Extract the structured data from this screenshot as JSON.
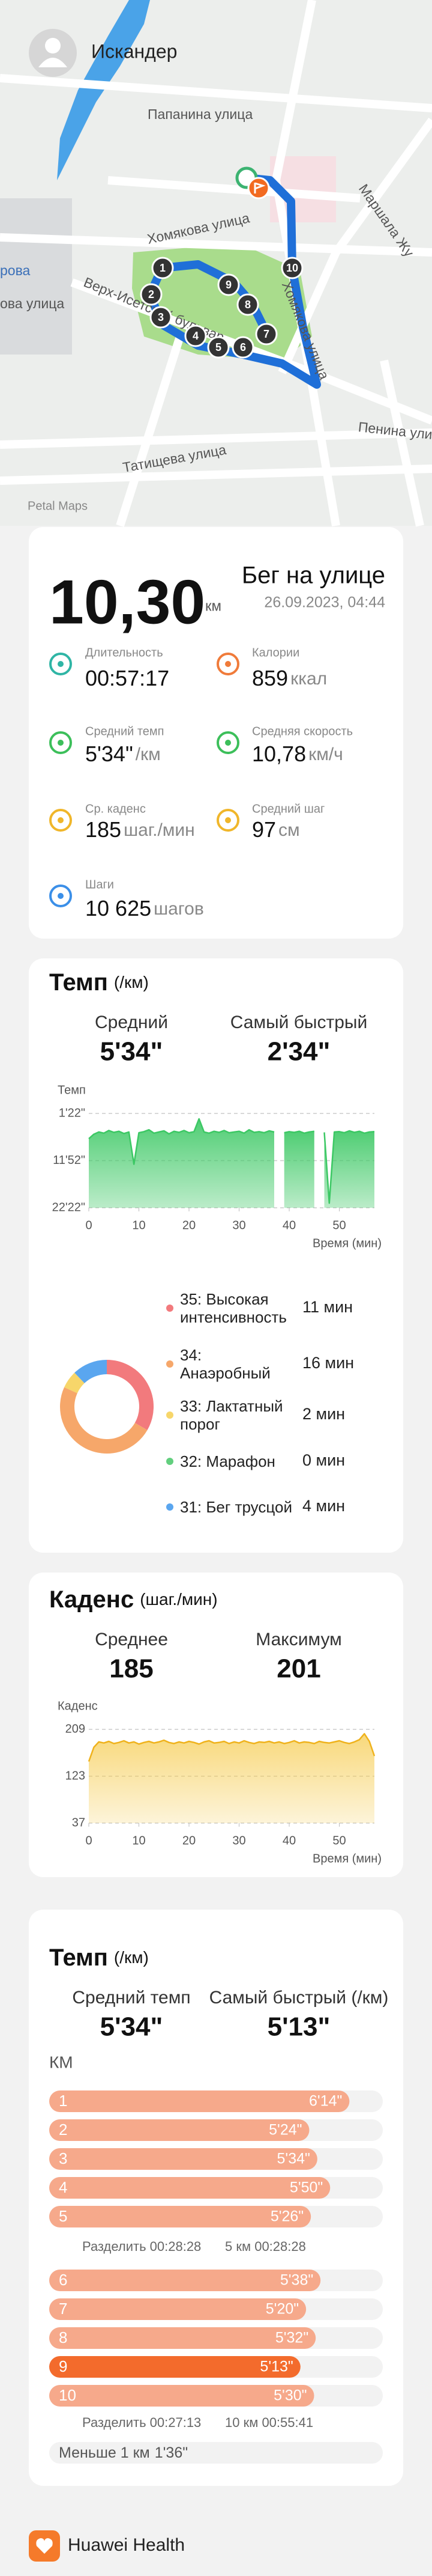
{
  "header": {
    "user": "Искандер"
  },
  "map": {
    "labels": [
      "Папанина улица",
      "Хомякова улица",
      "Маршала Жу",
      "рова",
      "ова улица",
      "Верх-Исетский бульвар",
      "Хомякова улица",
      "Пенина улица",
      "Татищева улица"
    ],
    "markers": [
      "1",
      "2",
      "3",
      "4",
      "5",
      "6",
      "7",
      "8",
      "9",
      "10"
    ],
    "attribution": "Petal Maps"
  },
  "summary": {
    "distance": "10,30",
    "distance_unit": "км",
    "activity": "Бег на улице",
    "datetime": "26.09.2023, 04:44",
    "stats": [
      {
        "label": "Длительность",
        "value": "00:57:17"
      },
      {
        "label": "Калории",
        "value": "859",
        "unit": "ккал"
      },
      {
        "label": "Средний темп",
        "value": "5'34\"",
        "unit": "/км"
      },
      {
        "label": "Средняя скорость",
        "value": "10,78",
        "unit": "км/ч"
      },
      {
        "label": "Ср. каденс",
        "value": "185",
        "unit": "шаг./мин"
      },
      {
        "label": "Средний шаг",
        "value": "97",
        "unit": "см"
      },
      {
        "label": "Шаги",
        "value": "10 625",
        "unit": "шагов"
      }
    ]
  },
  "pace_card": {
    "title": "Темп",
    "unit": "(/км)",
    "avg_label": "Средний",
    "avg": "5'34\"",
    "best_label": "Самый быстрый",
    "best": "2'34\""
  },
  "cadence_card": {
    "title": "Каденс",
    "unit": "(шаг./мин)",
    "avg_label": "Среднее",
    "avg": "185",
    "max_label": "Максимум",
    "max": "201"
  },
  "splits_card": {
    "title": "Темп",
    "unit": "(/км)",
    "avg_label": "Средний темп",
    "avg": "5'34\"",
    "best_label": "Самый быстрый (/км)",
    "best": "5'13\"",
    "column": "КМ",
    "splits": [
      {
        "split": "Разделить 00:28:28",
        "cumulative": "5 км 00:28:28"
      },
      {
        "split": "Разделить 00:27:13",
        "cumulative": "10 км 00:55:41"
      }
    ],
    "remainder_label": "Меньше 1 км",
    "remainder": "1'36\""
  },
  "footer": {
    "app": "Huawei Health"
  },
  "chart_data": [
    {
      "type": "line",
      "ylabel": "Темп",
      "xlabel": "Время (мин)",
      "x": [
        0,
        1,
        2,
        3,
        4,
        5,
        6,
        7,
        8,
        9,
        10,
        11,
        12,
        13,
        14,
        15,
        16,
        17,
        18,
        19,
        20,
        21,
        22,
        23,
        24,
        25,
        26,
        27,
        28,
        29,
        30,
        31,
        32,
        33,
        34,
        35,
        36,
        37,
        38,
        39,
        40,
        41,
        42,
        43,
        44,
        45,
        46,
        47,
        48,
        49,
        50,
        51,
        52,
        53,
        54,
        55,
        56,
        57
      ],
      "series": [
        {
          "color": "#3cc864",
          "values": [
            420,
            360,
            330,
            345,
            310,
            335,
            320,
            350,
            330,
            760,
            340,
            325,
            300,
            345,
            330,
            315,
            355,
            320,
            335,
            310,
            340,
            325,
            154,
            330,
            345,
            320,
            335,
            310,
            340,
            330,
            320,
            345,
            300,
            335,
            325,
            340,
            315,
            330,
            null,
            340,
            325,
            335,
            320,
            345,
            330,
            320,
            null,
            335,
            1280,
            330,
            325,
            340,
            315,
            335,
            320,
            345,
            330,
            325
          ]
        }
      ],
      "xlim": [
        0,
        57
      ],
      "xticks": [
        0,
        10,
        20,
        30,
        40,
        50
      ],
      "ylim": [
        1342,
        82
      ],
      "yticks": [
        {
          "value": 82,
          "label": "1'22\""
        },
        {
          "value": 712,
          "label": "11'52\""
        },
        {
          "value": 1342,
          "label": "22'22\""
        }
      ],
      "grid": true
    },
    {
      "type": "pie",
      "donut": true,
      "categories": [
        "35: Высокая интенсивность",
        "34: Анаэробный",
        "33: Лактатный порог",
        "32: Марафон",
        "31: Бег трусцой"
      ],
      "values": [
        11,
        16,
        2,
        0,
        4
      ],
      "value_labels": [
        "11 мин",
        "16 мин",
        "2 мин",
        "0 мин",
        "4 мин"
      ],
      "colors": [
        "#f27a7d",
        "#f6a76a",
        "#f7d66a",
        "#62cf7e",
        "#5aa6ef"
      ]
    },
    {
      "type": "line",
      "ylabel": "Каденс",
      "xlabel": "Время (мин)",
      "x": [
        0,
        1,
        2,
        3,
        4,
        5,
        6,
        7,
        8,
        9,
        10,
        11,
        12,
        13,
        14,
        15,
        16,
        17,
        18,
        19,
        20,
        21,
        22,
        23,
        24,
        25,
        26,
        27,
        28,
        29,
        30,
        31,
        32,
        33,
        34,
        35,
        36,
        37,
        38,
        39,
        40,
        41,
        42,
        43,
        44,
        45,
        46,
        47,
        48,
        49,
        50,
        51,
        52,
        53,
        54,
        55,
        56,
        57
      ],
      "series": [
        {
          "color": "#efb21c",
          "values": [
            150,
            176,
            186,
            184,
            187,
            183,
            185,
            188,
            184,
            186,
            182,
            185,
            187,
            184,
            186,
            189,
            185,
            183,
            186,
            184,
            187,
            185,
            182,
            186,
            188,
            184,
            185,
            187,
            183,
            186,
            184,
            188,
            185,
            183,
            186,
            185,
            187,
            184,
            186,
            183,
            185,
            188,
            184,
            186,
            185,
            183,
            187,
            185,
            184,
            186,
            188,
            185,
            183,
            186,
            190,
            201,
            187,
            160
          ]
        }
      ],
      "xlim": [
        0,
        57
      ],
      "xticks": [
        0,
        10,
        20,
        30,
        40,
        50
      ],
      "ylim": [
        37,
        209
      ],
      "yticks": [
        37,
        123,
        209
      ],
      "grid": true
    },
    {
      "type": "bar",
      "orientation": "horizontal",
      "categories": [
        "1",
        "2",
        "3",
        "4",
        "5",
        "6",
        "7",
        "8",
        "9",
        "10"
      ],
      "values": [
        374,
        324,
        334,
        350,
        326,
        338,
        320,
        332,
        313,
        330
      ],
      "value_labels": [
        "6'14\"",
        "5'24\"",
        "5'34\"",
        "5'50\"",
        "5'26\"",
        "5'38\"",
        "5'20\"",
        "5'32\"",
        "5'13\"",
        "5'30\""
      ],
      "color": "#f6a98b",
      "highlight_color": "#f36b2c"
    }
  ]
}
